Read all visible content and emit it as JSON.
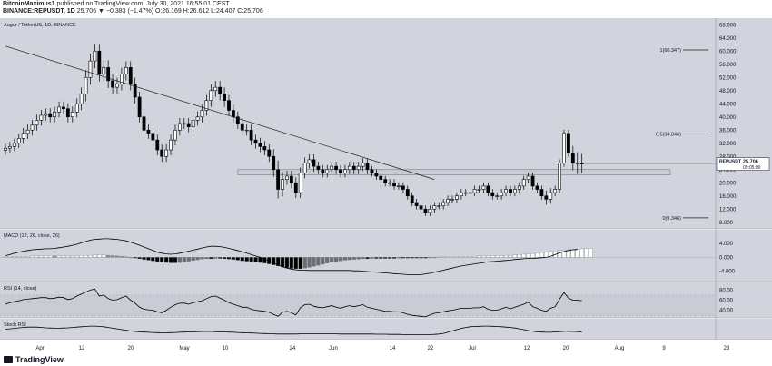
{
  "header": {
    "publisher": "BitcoinMaximus1",
    "published": "published on TradingView.com, July 30, 2021 16:55:01 CEST",
    "symbol_line": "BINANCE:REPUSDT, 1D",
    "ohlc": "25.706 ▼ −0.383 (−1.47%) O:26.169 H:26.612 L:24.407 C:25.706"
  },
  "footer": {
    "brand": "TradingView"
  },
  "colors": {
    "panel_bg": "#d1d4dc",
    "candle_up": "#ffffff",
    "candle_down": "#000000",
    "wick": "#000000"
  },
  "chart_data": [
    {
      "type": "candlestick",
      "title": "Augur / TetherUS, 1D, BINANCE",
      "y_unit": "USDT",
      "ylim": [
        6.0,
        70.0
      ],
      "y_ticks": [
        8.0,
        12.0,
        16.0,
        20.0,
        24.0,
        28.0,
        32.0,
        36.0,
        40.0,
        44.0,
        48.0,
        52.0,
        56.0,
        60.0,
        64.0,
        68.0
      ],
      "x_ticks": [
        "Apr",
        "12",
        "20",
        "May",
        "10",
        "24",
        "Jun",
        "14",
        "22",
        "Jul",
        "12",
        "20",
        "Aug",
        "9",
        "23"
      ],
      "price_label": "25.706",
      "countdown": "09:05:00",
      "fib_levels": [
        {
          "label": "1(60.347)",
          "value": 60.347
        },
        {
          "label": "0.5(34.846)",
          "value": 34.846
        },
        {
          "label": "0(9.346)",
          "value": 9.346
        }
      ],
      "trendline": {
        "from": [
          0,
          61.5
        ],
        "to": [
          96,
          21.0
        ]
      },
      "support_zone": [
        22.4,
        24.0
      ],
      "closes": [
        30.5,
        31,
        32,
        33.5,
        35,
        36,
        37.5,
        39,
        40.5,
        41,
        40,
        41.5,
        43,
        42.5,
        40,
        41.5,
        44,
        47,
        52,
        57,
        60,
        53,
        55,
        51,
        49,
        50,
        53,
        55,
        50,
        46,
        40,
        36,
        35,
        33,
        30,
        28,
        30,
        33,
        36,
        38,
        38,
        37,
        39,
        40,
        42,
        45,
        48,
        49,
        47,
        45,
        42,
        40,
        38,
        36,
        36,
        33,
        32,
        31,
        30,
        28,
        24,
        18,
        21,
        22,
        20,
        17,
        23,
        26,
        27,
        25,
        24,
        23,
        24,
        25,
        24,
        23,
        24,
        25,
        24,
        25,
        26,
        24,
        23,
        22,
        21,
        20,
        20,
        19,
        19,
        18,
        16,
        14,
        13,
        12,
        11,
        12,
        13,
        13,
        14,
        15,
        15,
        16,
        17,
        17,
        17,
        18,
        18,
        19,
        17,
        16,
        16,
        17,
        18,
        17,
        18,
        19,
        21,
        22,
        19,
        18,
        16,
        15,
        17,
        18,
        26,
        35,
        29,
        26,
        26,
        25.7
      ],
      "amplitudes": [
        2.5,
        2.5,
        2.5,
        2.5,
        3,
        3,
        3,
        3,
        3,
        3,
        3,
        3,
        3,
        3,
        3,
        3,
        3,
        3.5,
        4,
        4,
        4,
        4,
        4,
        4,
        3.5,
        3.5,
        3.5,
        3.5,
        3.5,
        3.5,
        3,
        3,
        3,
        3,
        3,
        3,
        3,
        3,
        3,
        3,
        3,
        3,
        3,
        3,
        3,
        3,
        3.5,
        3.5,
        3.5,
        3.5,
        3,
        3,
        3,
        3,
        3,
        3,
        3,
        3,
        3,
        3,
        4,
        5,
        4,
        3,
        3,
        3,
        3,
        3,
        3,
        3,
        2.5,
        2.5,
        2.5,
        2.5,
        2.5,
        2.5,
        2.5,
        2.5,
        2.5,
        2.5,
        2.5,
        2.5,
        2,
        2,
        2,
        2,
        2,
        2,
        2,
        2,
        2,
        2,
        2,
        2,
        2,
        2,
        2,
        2,
        2,
        2,
        2,
        2,
        2,
        2,
        2,
        2,
        2,
        2,
        2,
        2,
        2,
        2,
        2,
        2,
        2,
        2,
        2,
        2,
        2,
        2,
        2,
        3,
        2.5,
        2,
        2,
        2,
        2,
        4,
        6,
        5,
        3,
        2.5,
        2
      ]
    },
    {
      "type": "histogram_line",
      "title": "MACD (12, 26, close, 26)",
      "y_ticks": [
        4.0,
        0.0,
        -4.0
      ],
      "ylim": [
        -7,
        8
      ],
      "histogram_y0": [
        0.3,
        0.3,
        0.3,
        0.3,
        0.3,
        0.3,
        0.4,
        0.4,
        0.4,
        0.5,
        0.5,
        0.4,
        0.4,
        0.4,
        0.4,
        0.4,
        0.4,
        0.5,
        0.6,
        0.6,
        0.7,
        0.7,
        0.7,
        0.6,
        0.5,
        0.4,
        0.3,
        0.2,
        0.0,
        -0.2,
        -0.4,
        -0.6,
        -0.8,
        -1.0,
        -1.2,
        -1.4,
        -1.5,
        -1.6,
        -1.6,
        -1.5,
        -1.3,
        -1.1,
        -0.9,
        -0.7,
        -0.5,
        -0.4,
        -0.4,
        -0.3,
        -0.3,
        -0.4,
        -0.5,
        -0.6,
        -0.8,
        -1.0,
        -1.1,
        -1.2,
        -1.3,
        -1.5,
        -1.7,
        -1.9,
        -2.2,
        -2.5,
        -2.8,
        -3.0,
        -3.2,
        -3.3,
        -3.3,
        -3.1,
        -2.9,
        -2.6,
        -2.3,
        -2.0,
        -1.7,
        -1.4,
        -1.2,
        -1.0,
        -0.8,
        -0.7,
        -0.6,
        -0.5,
        -0.4,
        -0.4,
        -0.3,
        -0.3,
        -0.3,
        -0.3,
        -0.3,
        -0.3,
        -0.2,
        -0.2,
        -0.2,
        -0.2,
        -0.2,
        -0.2,
        -0.2,
        -0.1,
        0.0,
        0.1,
        0.2,
        0.3,
        0.3,
        0.3,
        0.3,
        0.3,
        0.3,
        0.3,
        0.4,
        0.4,
        0.4,
        0.5,
        0.5,
        0.5,
        0.6,
        0.6,
        0.7,
        0.8,
        0.9,
        1.0,
        1.1,
        1.2,
        1.4,
        1.5,
        1.7,
        1.9,
        2.0,
        2.1,
        2.2,
        2.3,
        2.4,
        2.5,
        2.5,
        2.6
      ],
      "macd_line": [
        0.5,
        0.8,
        1.2,
        1.5,
        1.8,
        2.0,
        2.2,
        2.3,
        2.4,
        2.5,
        2.5,
        2.6,
        2.8,
        3.0,
        3.2,
        3.5,
        3.8,
        4.2,
        4.6,
        5.0,
        5.2,
        5.3,
        5.4,
        5.4,
        5.3,
        5.2,
        5.0,
        4.8,
        4.4,
        4.0,
        3.5,
        3.0,
        2.5,
        2.0,
        1.5,
        1.2,
        1.0,
        0.9,
        1.0,
        1.2,
        1.5,
        1.8,
        2.1,
        2.4,
        2.7,
        3.0,
        3.2,
        3.2,
        3.1,
        2.9,
        2.6,
        2.3,
        2.0,
        1.6,
        1.2,
        0.8,
        0.4,
        0.0,
        -0.5,
        -1.0,
        -1.6,
        -2.2,
        -2.7,
        -3.1,
        -3.4,
        -3.6,
        -3.7,
        -3.7,
        -3.8,
        -3.8,
        -3.8,
        -3.8,
        -3.8,
        -3.8,
        -3.8,
        -3.8,
        -3.8,
        -3.8,
        -3.9,
        -3.9,
        -4.0,
        -4.1,
        -4.2,
        -4.3,
        -4.4,
        -4.5,
        -4.6,
        -4.7,
        -4.8,
        -4.9,
        -5.0,
        -5.0,
        -5.0,
        -5.0,
        -4.8,
        -4.6,
        -4.3,
        -4.0,
        -3.7,
        -3.4,
        -3.1,
        -2.8,
        -2.5,
        -2.3,
        -2.1,
        -1.9,
        -1.7,
        -1.5,
        -1.3,
        -1.2,
        -1.1,
        -1.0,
        -0.9,
        -0.8,
        -0.6,
        -0.5,
        -0.4,
        -0.3,
        -0.3,
        -0.2,
        -0.1,
        0.0,
        0.3,
        0.8,
        1.3,
        1.7,
        2.0,
        2.2,
        2.3
      ]
    },
    {
      "type": "line",
      "title": "RSI (14, close)",
      "y_ticks": [
        80.0,
        60.0,
        40.0
      ],
      "ylim": [
        25,
        95
      ],
      "band": [
        30,
        70
      ],
      "values": [
        52,
        55,
        57,
        59,
        61,
        62,
        63,
        64,
        65,
        65,
        63,
        64,
        66,
        65,
        61,
        63,
        68,
        72,
        76,
        80,
        82,
        68,
        70,
        63,
        60,
        61,
        65,
        68,
        60,
        54,
        46,
        42,
        41,
        40,
        37,
        35,
        40,
        46,
        51,
        54,
        54,
        52,
        55,
        57,
        59,
        63,
        67,
        68,
        64,
        60,
        55,
        52,
        49,
        46,
        46,
        42,
        40,
        39,
        38,
        36,
        32,
        28,
        36,
        38,
        35,
        31,
        45,
        51,
        52,
        48,
        46,
        45,
        47,
        49,
        46,
        44,
        47,
        49,
        47,
        49,
        51,
        46,
        44,
        42,
        40,
        38,
        38,
        37,
        37,
        35,
        32,
        30,
        29,
        28,
        27,
        31,
        34,
        35,
        37,
        39,
        40,
        42,
        44,
        44,
        44,
        45,
        45,
        47,
        42,
        40,
        40,
        43,
        46,
        43,
        46,
        49,
        52,
        56,
        47,
        44,
        40,
        38,
        44,
        47,
        62,
        75,
        64,
        60,
        60,
        59
      ]
    },
    {
      "type": "line",
      "title": "Stoch RSI",
      "ylim": [
        0,
        100
      ],
      "values": [
        50,
        52,
        55,
        58,
        60,
        62,
        62,
        62,
        60,
        58,
        57,
        56,
        56,
        57,
        58,
        60,
        62,
        64,
        66,
        68,
        68,
        66,
        64,
        60,
        56,
        52,
        48,
        44,
        40,
        37,
        35,
        33,
        32,
        31,
        30,
        29,
        29,
        30,
        31,
        32,
        33,
        34,
        35,
        36,
        37,
        37,
        37,
        36,
        35,
        34,
        33,
        32,
        31,
        30,
        29,
        28,
        27,
        26,
        25,
        24,
        23,
        22,
        22,
        22,
        22,
        22,
        23,
        24,
        24,
        24,
        24,
        24,
        24,
        24,
        23,
        22,
        22,
        22,
        22,
        22,
        22,
        22,
        22,
        21,
        21,
        21,
        20,
        20,
        20,
        19,
        19,
        18,
        18,
        18,
        18,
        19,
        20,
        22,
        26,
        32,
        40,
        48,
        55,
        60,
        64,
        66,
        67,
        68,
        68,
        67,
        66,
        64,
        62,
        60,
        57,
        52,
        48,
        42,
        38,
        35,
        33,
        32,
        32,
        34,
        36,
        38,
        38,
        37,
        36,
        35
      ]
    }
  ]
}
